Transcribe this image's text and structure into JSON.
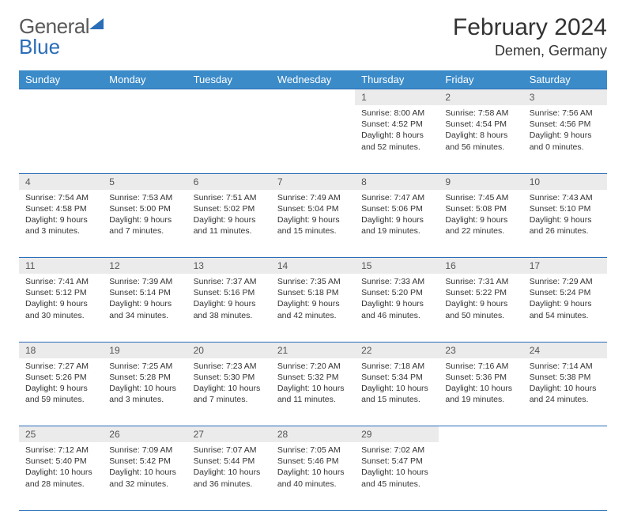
{
  "logo": {
    "part1": "General",
    "part2": "Blue"
  },
  "title": "February 2024",
  "location": "Demen, Germany",
  "colors": {
    "header_bg": "#3b8bc9",
    "border": "#2a6db8",
    "daynum_bg": "#ebebeb",
    "text": "#333333",
    "background": "#ffffff"
  },
  "table": {
    "columns": [
      "Sunday",
      "Monday",
      "Tuesday",
      "Wednesday",
      "Thursday",
      "Friday",
      "Saturday"
    ],
    "weeks": [
      [
        null,
        null,
        null,
        null,
        {
          "n": "1",
          "sunrise": "8:00 AM",
          "sunset": "4:52 PM",
          "daylight": "8 hours and 52 minutes."
        },
        {
          "n": "2",
          "sunrise": "7:58 AM",
          "sunset": "4:54 PM",
          "daylight": "8 hours and 56 minutes."
        },
        {
          "n": "3",
          "sunrise": "7:56 AM",
          "sunset": "4:56 PM",
          "daylight": "9 hours and 0 minutes."
        }
      ],
      [
        {
          "n": "4",
          "sunrise": "7:54 AM",
          "sunset": "4:58 PM",
          "daylight": "9 hours and 3 minutes."
        },
        {
          "n": "5",
          "sunrise": "7:53 AM",
          "sunset": "5:00 PM",
          "daylight": "9 hours and 7 minutes."
        },
        {
          "n": "6",
          "sunrise": "7:51 AM",
          "sunset": "5:02 PM",
          "daylight": "9 hours and 11 minutes."
        },
        {
          "n": "7",
          "sunrise": "7:49 AM",
          "sunset": "5:04 PM",
          "daylight": "9 hours and 15 minutes."
        },
        {
          "n": "8",
          "sunrise": "7:47 AM",
          "sunset": "5:06 PM",
          "daylight": "9 hours and 19 minutes."
        },
        {
          "n": "9",
          "sunrise": "7:45 AM",
          "sunset": "5:08 PM",
          "daylight": "9 hours and 22 minutes."
        },
        {
          "n": "10",
          "sunrise": "7:43 AM",
          "sunset": "5:10 PM",
          "daylight": "9 hours and 26 minutes."
        }
      ],
      [
        {
          "n": "11",
          "sunrise": "7:41 AM",
          "sunset": "5:12 PM",
          "daylight": "9 hours and 30 minutes."
        },
        {
          "n": "12",
          "sunrise": "7:39 AM",
          "sunset": "5:14 PM",
          "daylight": "9 hours and 34 minutes."
        },
        {
          "n": "13",
          "sunrise": "7:37 AM",
          "sunset": "5:16 PM",
          "daylight": "9 hours and 38 minutes."
        },
        {
          "n": "14",
          "sunrise": "7:35 AM",
          "sunset": "5:18 PM",
          "daylight": "9 hours and 42 minutes."
        },
        {
          "n": "15",
          "sunrise": "7:33 AM",
          "sunset": "5:20 PM",
          "daylight": "9 hours and 46 minutes."
        },
        {
          "n": "16",
          "sunrise": "7:31 AM",
          "sunset": "5:22 PM",
          "daylight": "9 hours and 50 minutes."
        },
        {
          "n": "17",
          "sunrise": "7:29 AM",
          "sunset": "5:24 PM",
          "daylight": "9 hours and 54 minutes."
        }
      ],
      [
        {
          "n": "18",
          "sunrise": "7:27 AM",
          "sunset": "5:26 PM",
          "daylight": "9 hours and 59 minutes."
        },
        {
          "n": "19",
          "sunrise": "7:25 AM",
          "sunset": "5:28 PM",
          "daylight": "10 hours and 3 minutes."
        },
        {
          "n": "20",
          "sunrise": "7:23 AM",
          "sunset": "5:30 PM",
          "daylight": "10 hours and 7 minutes."
        },
        {
          "n": "21",
          "sunrise": "7:20 AM",
          "sunset": "5:32 PM",
          "daylight": "10 hours and 11 minutes."
        },
        {
          "n": "22",
          "sunrise": "7:18 AM",
          "sunset": "5:34 PM",
          "daylight": "10 hours and 15 minutes."
        },
        {
          "n": "23",
          "sunrise": "7:16 AM",
          "sunset": "5:36 PM",
          "daylight": "10 hours and 19 minutes."
        },
        {
          "n": "24",
          "sunrise": "7:14 AM",
          "sunset": "5:38 PM",
          "daylight": "10 hours and 24 minutes."
        }
      ],
      [
        {
          "n": "25",
          "sunrise": "7:12 AM",
          "sunset": "5:40 PM",
          "daylight": "10 hours and 28 minutes."
        },
        {
          "n": "26",
          "sunrise": "7:09 AM",
          "sunset": "5:42 PM",
          "daylight": "10 hours and 32 minutes."
        },
        {
          "n": "27",
          "sunrise": "7:07 AM",
          "sunset": "5:44 PM",
          "daylight": "10 hours and 36 minutes."
        },
        {
          "n": "28",
          "sunrise": "7:05 AM",
          "sunset": "5:46 PM",
          "daylight": "10 hours and 40 minutes."
        },
        {
          "n": "29",
          "sunrise": "7:02 AM",
          "sunset": "5:47 PM",
          "daylight": "10 hours and 45 minutes."
        },
        null,
        null
      ]
    ],
    "labels": {
      "sunrise": "Sunrise:",
      "sunset": "Sunset:",
      "daylight": "Daylight:"
    }
  }
}
